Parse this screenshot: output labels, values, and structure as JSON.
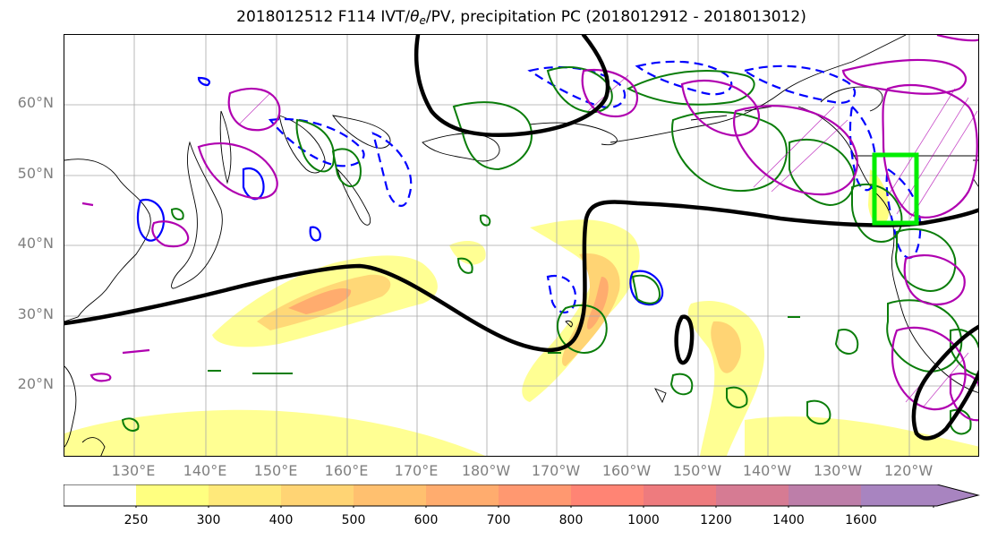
{
  "title": {
    "main": "2018012512 F114 IVT/",
    "theta": "θ",
    "theta_sub": "e",
    "rest": "/PV, precipitation PC (2018012912 - 2018013012)"
  },
  "lat_labels": [
    "60°N",
    "50°N",
    "40°N",
    "30°N",
    "20°N"
  ],
  "lon_labels": [
    "130°E",
    "140°E",
    "150°E",
    "160°E",
    "170°E",
    "180°W",
    "170°W",
    "160°W",
    "150°W",
    "140°W",
    "130°W",
    "120°W"
  ],
  "colorbar": {
    "ticks": [
      "250",
      "300",
      "400",
      "500",
      "600",
      "700",
      "800",
      "1000",
      "1200",
      "1400",
      "1600"
    ],
    "colors": [
      "#ffff80",
      "#ffe97a",
      "#ffd474",
      "#ffc06f",
      "#ffac6e",
      "#ff9870",
      "#ff8474",
      "#ee7b7e",
      "#d67b93",
      "#bd7ea9",
      "#a884c0"
    ]
  },
  "legend_colors": {
    "pv_contour": "#000000",
    "precip_positive": "#0a7d0a",
    "precip_negative": "#0000ff",
    "theta_e": "#b000b0",
    "target_box": "#00ee00"
  }
}
